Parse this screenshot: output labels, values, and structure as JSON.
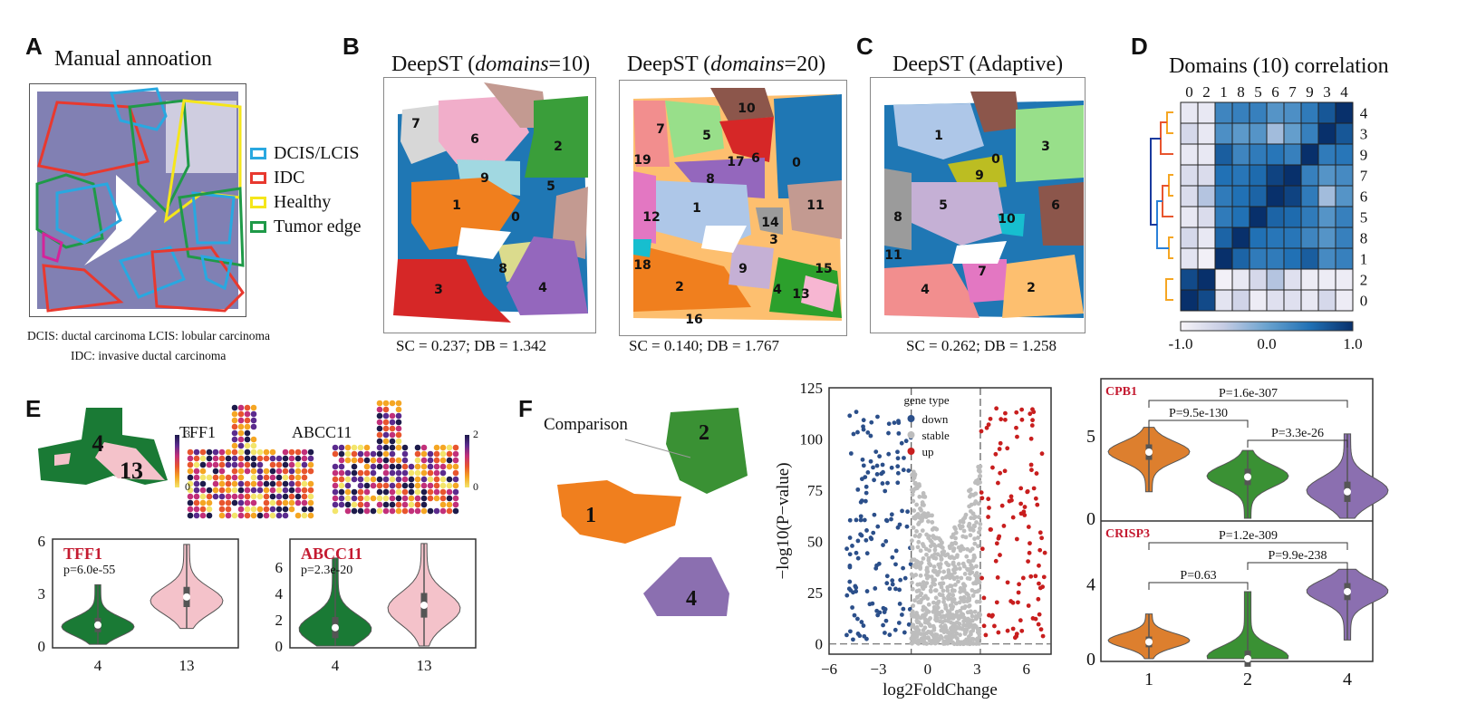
{
  "figure_note": "Heatmap correlation values, volcano scatter, violin shapes and spatial domain maps are schematic reconstructions read from colour and shape, not printed data. See chart_data notes.",
  "panels": {
    "A": {
      "letter": "A",
      "title": "Manual annoation",
      "legend": [
        {
          "label": "DCIS/LCIS",
          "color": "#29a8e0"
        },
        {
          "label": "IDC",
          "color": "#e8392f"
        },
        {
          "label": "Healthy",
          "color": "#f5e61b"
        },
        {
          "label": "Tumor edge",
          "color": "#1f9a48"
        }
      ],
      "footnote_line1": "DCIS: ductal carcinoma  LCIS: lobular carcinoma",
      "footnote_line2": "IDC: invasive ductal carcinoma"
    },
    "B": {
      "letter": "B",
      "maps": [
        {
          "title_prefix": "DeepST (",
          "title_italic": "domains",
          "title_suffix": "=10)",
          "metric": "SC = 0.237; DB = 1.342",
          "domain_labels": [
            "7",
            "6",
            "2",
            "9",
            "5",
            "1",
            "0",
            "8",
            "3",
            "4"
          ]
        },
        {
          "title_prefix": "DeepST (",
          "title_italic": "domains",
          "title_suffix": "=20)",
          "metric": "SC = 0.140; DB = 1.767",
          "domain_labels": [
            "10",
            "7",
            "5",
            "6",
            "0",
            "19",
            "17",
            "8",
            "1",
            "11",
            "12",
            "14",
            "3",
            "18",
            "9",
            "15",
            "2",
            "4",
            "13",
            "16"
          ]
        }
      ]
    },
    "C": {
      "letter": "C",
      "title": "DeepST (Adaptive)",
      "metric": "SC = 0.262; DB = 1.258",
      "domain_labels": [
        "1",
        "3",
        "0",
        "9",
        "5",
        "6",
        "8",
        "10",
        "11",
        "7",
        "4",
        "2"
      ]
    },
    "D": {
      "letter": "D"
    },
    "E": {
      "letter": "E",
      "map_labels": [
        "4",
        "13"
      ],
      "gene1": "TFF1",
      "gene2": "ABCC11",
      "cbar1": {
        "max": "3",
        "min": "0"
      },
      "cbar2": {
        "max": "2",
        "min": "0"
      }
    },
    "F": {
      "letter": "F",
      "comparison_label": "Comparison",
      "map_labels": [
        "1",
        "2",
        "4"
      ]
    }
  },
  "chart_data": [
    {
      "id": "D-heatmap",
      "type": "heatmap",
      "title": "Domains (10) correlation",
      "x_labels": [
        "0",
        "2",
        "1",
        "8",
        "5",
        "6",
        "7",
        "9",
        "3",
        "4"
      ],
      "y_labels": [
        "4",
        "3",
        "9",
        "7",
        "6",
        "5",
        "8",
        "1",
        "2",
        "0"
      ],
      "colorbar": {
        "min": -1.0,
        "max": 1.0,
        "ticks": [
          "-1.0",
          "0.0",
          "1.0"
        ],
        "colormap": "Blues"
      },
      "values_precision": "approximate",
      "values_note": "No cell values are printed in the image. Each value is estimated by matching the cell's shading to the colorbar (pale lavender-white = -1.0, mid blue = 0.0, navy = 1.0), so treat them as +/-0.15 approximations. The light end of the scale is especially uncertain because its shade is close to the background.",
      "values": [
        [
          -0.85,
          -0.85,
          0.3,
          0.35,
          0.35,
          0.15,
          0.2,
          0.4,
          0.7,
          1.0
        ],
        [
          -0.65,
          -0.85,
          0.2,
          0.1,
          0.15,
          -0.3,
          0.05,
          0.35,
          1.0,
          0.7
        ],
        [
          -0.85,
          -0.85,
          0.65,
          0.3,
          0.4,
          0.45,
          0.35,
          1.0,
          0.4,
          0.45
        ],
        [
          -0.7,
          -0.7,
          0.5,
          0.45,
          0.55,
          0.85,
          1.0,
          0.35,
          0.15,
          0.25
        ],
        [
          -0.7,
          -0.4,
          0.4,
          0.5,
          0.6,
          1.0,
          0.85,
          0.4,
          -0.3,
          0.15
        ],
        [
          -0.85,
          -0.7,
          0.4,
          0.5,
          1.0,
          0.6,
          0.55,
          0.4,
          0.15,
          0.35
        ],
        [
          -0.65,
          -0.85,
          0.6,
          1.0,
          0.5,
          0.45,
          0.45,
          0.3,
          0.15,
          0.35
        ],
        [
          -0.8,
          -0.95,
          1.0,
          0.6,
          0.4,
          0.4,
          0.5,
          0.65,
          0.25,
          0.35
        ],
        [
          0.8,
          1.0,
          -0.95,
          -0.85,
          -0.65,
          -0.4,
          -0.75,
          -0.9,
          -0.9,
          -0.9
        ],
        [
          1.0,
          0.8,
          -0.8,
          -0.6,
          -0.9,
          -0.75,
          -0.75,
          -0.85,
          -0.65,
          -0.9
        ]
      ],
      "dendrogram": "left, colored branches (orange, red, blue)"
    },
    {
      "id": "E-violin-TFF1",
      "type": "violin",
      "title": "TFF1",
      "annotation": "p=6.0e-55",
      "categories": [
        "4",
        "13"
      ],
      "colors": [
        "#1a7a35",
        "#f4c2ca"
      ],
      "ylim": [
        0,
        6
      ],
      "yticks": [
        "0",
        "3",
        "6"
      ],
      "medians": [
        1.2,
        2.8
      ],
      "ranges": [
        [
          0.1,
          3.5
        ],
        [
          1.0,
          5.8
        ]
      ],
      "shape_precision": "schematic"
    },
    {
      "id": "E-violin-ABCC11",
      "type": "violin",
      "title": "ABCC11",
      "annotation": "p=2.3e-20",
      "categories": [
        "4",
        "13"
      ],
      "colors": [
        "#1a7a35",
        "#f4c2ca"
      ],
      "ylim": [
        0,
        8
      ],
      "yticks": [
        "0",
        "2",
        "4",
        "6"
      ],
      "medians": [
        1.4,
        3.1
      ],
      "ranges": [
        [
          0,
          6.7
        ],
        [
          0,
          7.8
        ]
      ],
      "shape_precision": "schematic"
    },
    {
      "id": "F-volcano",
      "type": "scatter",
      "xlabel": "log2FoldChange",
      "ylabel": "−log10(P−value)",
      "xlim": [
        -6,
        7.5
      ],
      "ylim": [
        -5,
        125
      ],
      "xticks": [
        "−6",
        "−3",
        "0",
        "3",
        "6"
      ],
      "yticks": [
        "0",
        "25",
        "50",
        "75",
        "100",
        "125"
      ],
      "thresholds": {
        "x": [
          -1,
          3.2
        ],
        "y": 0
      },
      "legend": {
        "title": "gene type",
        "entries": [
          {
            "label": "down",
            "color": "#2b4f8a"
          },
          {
            "label": "stable",
            "color": "#bdbdbd"
          },
          {
            "label": "up",
            "color": "#c81e1e"
          }
        ],
        "position": "top-center"
      },
      "points_precision": "schematic",
      "points_note": "Individual points are regenerated to match the density and layout of each group, not read off the plot point by point."
    },
    {
      "id": "F-violin-CPB1",
      "type": "violin",
      "title": "CPB1",
      "categories": [
        "1",
        "2",
        "4"
      ],
      "colors": [
        "#dd7f2e",
        "#3a9134",
        "#8b6fb0"
      ],
      "ylim": [
        0,
        8
      ],
      "yticks": [
        "0",
        "5"
      ],
      "medians": [
        4.0,
        2.5,
        1.6
      ],
      "ranges": [
        [
          1.6,
          5.5
        ],
        [
          0,
          4.1
        ],
        [
          0,
          5.1
        ]
      ],
      "brackets": [
        {
          "from": "1",
          "to": "4",
          "label": "P=1.6e-307"
        },
        {
          "from": "1",
          "to": "2",
          "label": "P=9.5e-130"
        },
        {
          "from": "2",
          "to": "4",
          "label": "P=3.3e-26"
        }
      ],
      "shape_precision": "schematic"
    },
    {
      "id": "F-violin-CRISP3",
      "type": "violin",
      "title": "CRISP3",
      "categories": [
        "1",
        "2",
        "4"
      ],
      "colors": [
        "#dd7f2e",
        "#3a9134",
        "#8b6fb0"
      ],
      "ylim": [
        0,
        7
      ],
      "yticks": [
        "0",
        "4"
      ],
      "medians": [
        0.9,
        0.0,
        3.6
      ],
      "ranges": [
        [
          0,
          2.4
        ],
        [
          0,
          3.6
        ],
        [
          1.0,
          4.8
        ]
      ],
      "brackets": [
        {
          "from": "1",
          "to": "4",
          "label": "P=1.2e-309"
        },
        {
          "from": "2",
          "to": "4",
          "label": "P=9.9e-238"
        },
        {
          "from": "1",
          "to": "2",
          "label": "P=0.63"
        }
      ],
      "xticks": [
        "1",
        "2",
        "4"
      ],
      "shape_precision": "schematic"
    }
  ]
}
